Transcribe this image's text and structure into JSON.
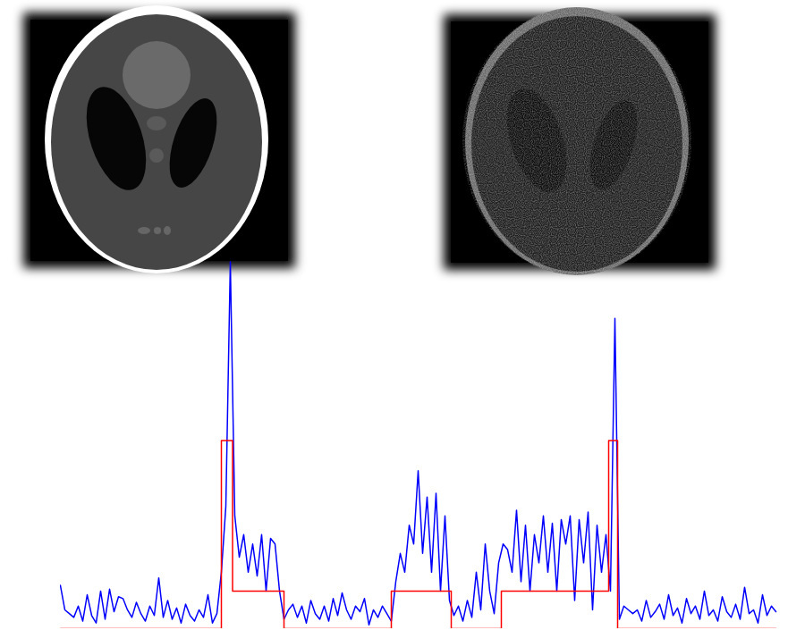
{
  "chart_data": {
    "type": "line",
    "tick_labels": false,
    "grid": false,
    "xlim": [
      0,
      160.6
    ],
    "ylim": [
      0,
      2
    ],
    "series": [
      {
        "color": "#0000ff",
        "line_style": "solid",
        "x": [
          0,
          1,
          2,
          3,
          4,
          5,
          6,
          7,
          8,
          9,
          10,
          11,
          12,
          13,
          14,
          15,
          16,
          17,
          18,
          19,
          20,
          21,
          22,
          23,
          24,
          25,
          26,
          27,
          28,
          29,
          30,
          31,
          32,
          33,
          34,
          35,
          36,
          37,
          38,
          39,
          40,
          41,
          42,
          43,
          44,
          45,
          46,
          47,
          48,
          49,
          50,
          51,
          52,
          53,
          54,
          55,
          56,
          57,
          58,
          59,
          60,
          61,
          62,
          63,
          64,
          65,
          66,
          67,
          68,
          69,
          70,
          71,
          72,
          73,
          74,
          75,
          76,
          77,
          78,
          79,
          80,
          81,
          82,
          83,
          84,
          85,
          86,
          87,
          88,
          89,
          90,
          91,
          92,
          93,
          94,
          95,
          96,
          97,
          98,
          99,
          100,
          101,
          102,
          103,
          104,
          105,
          106,
          107,
          108,
          109,
          110,
          111,
          112,
          113,
          114,
          115,
          116,
          117,
          118,
          119,
          120,
          121,
          122,
          123,
          124,
          125,
          126,
          127,
          128,
          129,
          130,
          131,
          132,
          133,
          134,
          135,
          136,
          137,
          138,
          139,
          140,
          141,
          142,
          143,
          144,
          145,
          146,
          147,
          148,
          149,
          150,
          151,
          152,
          153,
          154,
          155,
          156,
          157,
          158,
          159,
          160
        ],
        "values": [
          0.23,
          0.1,
          0.08,
          0.06,
          0.12,
          0.04,
          0.18,
          0.07,
          0.03,
          0.2,
          0.05,
          0.21,
          0.09,
          0.17,
          0.16,
          0.1,
          0.06,
          0.14,
          0.08,
          0.04,
          0.12,
          0.07,
          0.27,
          0.06,
          0.15,
          0.05,
          0.11,
          0.03,
          0.13,
          0.07,
          0.04,
          0.1,
          0.06,
          0.18,
          0.03,
          0.08,
          0.3,
          0.65,
          1.95,
          0.6,
          0.38,
          0.5,
          0.3,
          0.45,
          0.28,
          0.5,
          0.2,
          0.48,
          0.45,
          0.2,
          0.05,
          0.1,
          0.13,
          0.06,
          0.12,
          0.03,
          0.15,
          0.08,
          0.05,
          0.12,
          0.04,
          0.16,
          0.07,
          0.19,
          0.1,
          0.05,
          0.12,
          0.09,
          0.16,
          0.02,
          0.1,
          0.06,
          0.12,
          0.08,
          0.04,
          0.25,
          0.4,
          0.3,
          0.55,
          0.45,
          0.84,
          0.4,
          0.7,
          0.3,
          0.72,
          0.2,
          0.6,
          0.15,
          0.07,
          0.12,
          0.04,
          0.15,
          0.06,
          0.3,
          0.1,
          0.45,
          0.2,
          0.08,
          0.35,
          0.45,
          0.42,
          0.3,
          0.63,
          0.25,
          0.55,
          0.2,
          0.5,
          0.35,
          0.6,
          0.3,
          0.56,
          0.2,
          0.58,
          0.45,
          0.6,
          0.15,
          0.58,
          0.35,
          0.62,
          0.1,
          0.55,
          0.3,
          0.5,
          0.2,
          1.65,
          0.05,
          0.12,
          0.1,
          0.08,
          0.1,
          0.04,
          0.15,
          0.06,
          0.09,
          0.13,
          0.05,
          0.18,
          0.07,
          0.11,
          0.03,
          0.16,
          0.08,
          0.12,
          0.05,
          0.2,
          0.07,
          0.1,
          0.04,
          0.17,
          0.09,
          0.06,
          0.13,
          0.05,
          0.22,
          0.08,
          0.1,
          0.03,
          0.18,
          0.07,
          0.12,
          0.09
        ]
      },
      {
        "color": "#ff0000",
        "line_style": "solid",
        "x": [
          0,
          36,
          36,
          38.5,
          38.5,
          50,
          50,
          74,
          74,
          87.4,
          87.4,
          98.6,
          98.6,
          122.6,
          122.6,
          124.6,
          124.6,
          160
        ],
        "values": [
          0,
          0,
          1,
          1,
          0.2,
          0.2,
          0,
          0,
          0.2,
          0.2,
          0,
          0,
          0.2,
          0.2,
          1,
          1,
          0,
          0
        ]
      }
    ]
  }
}
